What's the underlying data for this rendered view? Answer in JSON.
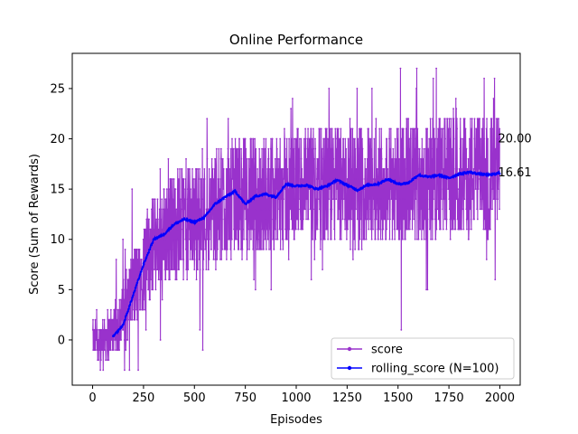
{
  "chart_data": {
    "type": "line",
    "title": "Online Performance",
    "xlabel": "Episodes",
    "ylabel": "Score (Sum of Rewards)",
    "xlim": [
      -100,
      2100
    ],
    "ylim": [
      -4.5,
      28.5
    ],
    "xticks": [
      0,
      250,
      500,
      750,
      1000,
      1250,
      1500,
      1750,
      2000
    ],
    "yticks": [
      0,
      5,
      10,
      15,
      20,
      25
    ],
    "grid": false,
    "legend_position": "lower-right",
    "series": [
      {
        "name": "score",
        "color": "#9932cc",
        "marker": "dot",
        "episode_count": 2000,
        "trend": {
          "x": [
            0,
            50,
            100,
            150,
            200,
            250,
            300,
            350,
            400,
            450,
            500,
            600,
            700,
            800,
            900,
            1000,
            1100,
            1200,
            1300,
            1400,
            1500,
            1600,
            1700,
            1800,
            1900,
            2000
          ],
          "y": [
            0,
            0.3,
            0.8,
            2.5,
            5,
            7.5,
            9.5,
            10.5,
            11.5,
            12,
            12,
            13,
            14.5,
            14,
            14.5,
            15.5,
            15,
            15.8,
            15,
            15.5,
            15.8,
            15.7,
            16.3,
            16.3,
            16.5,
            16.6
          ]
        },
        "noise_amplitude": {
          "x": [
            0,
            100,
            200,
            300,
            500,
            2000
          ],
          "y": [
            1,
            1.5,
            2.5,
            3,
            3.6,
            3.8
          ]
        },
        "y_range": [
          -3,
          27
        ],
        "last_value": 20
      },
      {
        "name": "rolling_score (N=100)",
        "color": "#0000ff",
        "marker": "dot",
        "window": 100,
        "x": [
          100,
          150,
          200,
          250,
          300,
          350,
          400,
          450,
          500,
          550,
          600,
          650,
          700,
          750,
          800,
          850,
          900,
          950,
          1000,
          1050,
          1100,
          1150,
          1200,
          1250,
          1300,
          1350,
          1400,
          1450,
          1500,
          1550,
          1600,
          1650,
          1700,
          1750,
          1800,
          1850,
          1900,
          1950,
          2000
        ],
        "y": [
          0.3,
          1.5,
          4.5,
          7.5,
          10,
          10.5,
          11.5,
          12,
          11.7,
          12.2,
          13.5,
          14.2,
          14.8,
          13.5,
          14.3,
          14.5,
          14.2,
          15.5,
          15.3,
          15.4,
          15,
          15.3,
          15.9,
          15.4,
          14.9,
          15.4,
          15.5,
          16,
          15.5,
          15.6,
          16.4,
          16.2,
          16.4,
          16.1,
          16.5,
          16.7,
          16.5,
          16.4,
          16.61
        ]
      }
    ],
    "annotations": [
      {
        "x": 2000,
        "y": 20.0,
        "text": "20.00"
      },
      {
        "x": 2000,
        "y": 16.61,
        "text": "16.61"
      }
    ]
  }
}
